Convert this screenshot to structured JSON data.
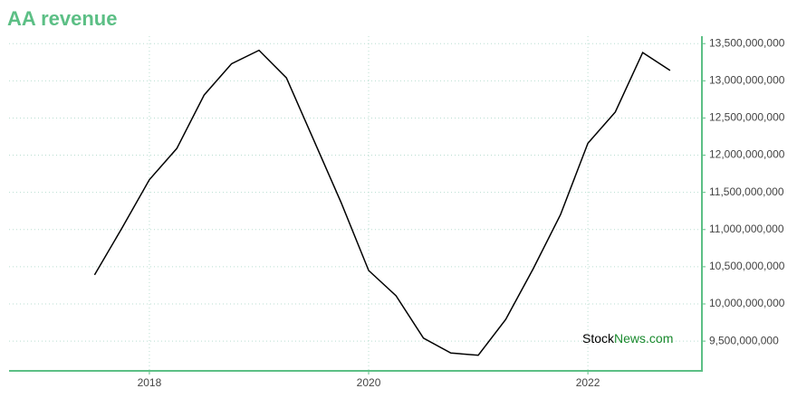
{
  "chart_data": {
    "type": "line",
    "title": "AA revenue",
    "x": [
      2017.5,
      2017.75,
      2018,
      2018.25,
      2018.5,
      2018.75,
      2019,
      2019.25,
      2019.5,
      2019.75,
      2020,
      2020.25,
      2020.5,
      2020.75,
      2021,
      2021.25,
      2021.5,
      2021.75,
      2022,
      2022.25,
      2022.5,
      2022.75
    ],
    "series": [
      {
        "name": "AA revenue",
        "color": "#000000",
        "values": [
          10390000000,
          11020000000,
          11670000000,
          12090000000,
          12810000000,
          13230000000,
          13410000000,
          13040000000,
          12200000000,
          11360000000,
          10450000000,
          10110000000,
          9540000000,
          9340000000,
          9310000000,
          9790000000,
          10470000000,
          11200000000,
          12160000000,
          12580000000,
          13380000000,
          13140000000
        ]
      }
    ],
    "xlim": [
      2016.72,
      2023.04
    ],
    "xticks": [
      2018,
      2020,
      2022
    ],
    "ylim": [
      9100000000,
      13600000000
    ],
    "yticks": [
      {
        "value": 9500000000,
        "label": "9,500,000,000"
      },
      {
        "value": 10000000000,
        "label": "10,000,000,000"
      },
      {
        "value": 10500000000,
        "label": "10,500,000,000"
      },
      {
        "value": 11000000000,
        "label": "11,000,000,000"
      },
      {
        "value": 11500000000,
        "label": "11,500,000,000"
      },
      {
        "value": 12000000000,
        "label": "12,000,000,000"
      },
      {
        "value": 12500000000,
        "label": "12,500,000,000"
      },
      {
        "value": 13000000000,
        "label": "13,000,000,000"
      },
      {
        "value": 13500000000,
        "label": "13,500,000,000"
      }
    ],
    "grid": true,
    "axis_color": "#5cbf85",
    "watermark": {
      "part1": "Stock",
      "part2": "News.com"
    }
  }
}
